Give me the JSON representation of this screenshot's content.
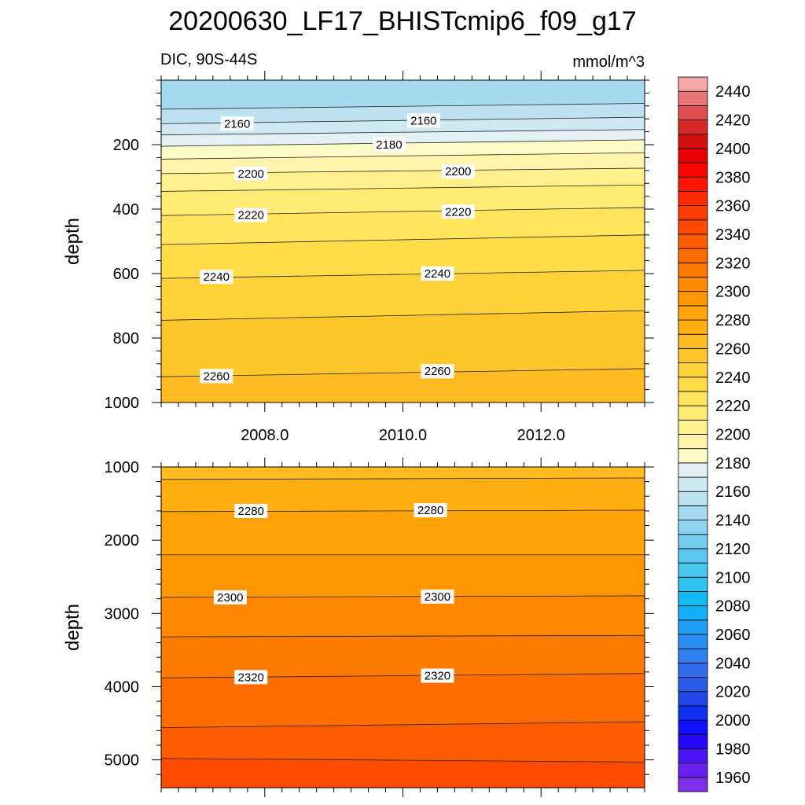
{
  "figure": {
    "title": "20200630_LF17_BHISTcmip6_f09_g17",
    "variable_label": "DIC, 90S-44S",
    "units_label": "mmol/m^3"
  },
  "chart_data": [
    {
      "type": "contour",
      "panel": "upper",
      "ylabel": "depth",
      "xlim": [
        2006.5,
        2013.5
      ],
      "ylim": [
        1000,
        0
      ],
      "x_ticks": [
        2008,
        2010,
        2012
      ],
      "x_tick_labels": [
        "2008.0",
        "2010.0",
        "2012.0"
      ],
      "y_ticks": [
        200,
        400,
        600,
        800,
        1000
      ],
      "y_tick_labels": [
        "200",
        "400",
        "600",
        "800",
        "1000"
      ],
      "contour_interval": 10,
      "isolines": [
        {
          "level": 2140,
          "depth_start": 0,
          "depth_end": 0
        },
        {
          "level": 2150,
          "depth_start": 90,
          "depth_end": 72
        },
        {
          "level": 2160,
          "depth_start": 135,
          "depth_end": 115
        },
        {
          "level": 2170,
          "depth_start": 170,
          "depth_end": 153
        },
        {
          "level": 2180,
          "depth_start": 205,
          "depth_end": 185
        },
        {
          "level": 2190,
          "depth_start": 245,
          "depth_end": 225
        },
        {
          "level": 2200,
          "depth_start": 290,
          "depth_end": 273
        },
        {
          "level": 2210,
          "depth_start": 345,
          "depth_end": 325
        },
        {
          "level": 2220,
          "depth_start": 420,
          "depth_end": 395
        },
        {
          "level": 2230,
          "depth_start": 510,
          "depth_end": 480
        },
        {
          "level": 2240,
          "depth_start": 615,
          "depth_end": 590
        },
        {
          "level": 2250,
          "depth_start": 745,
          "depth_end": 715
        },
        {
          "level": 2260,
          "depth_start": 920,
          "depth_end": 895
        }
      ],
      "line_labels": [
        {
          "text": "2160",
          "x": 2007.6,
          "depth": 135
        },
        {
          "text": "2160",
          "x": 2010.3,
          "depth": 125
        },
        {
          "text": "2180",
          "x": 2009.8,
          "depth": 200
        },
        {
          "text": "2200",
          "x": 2007.8,
          "depth": 290
        },
        {
          "text": "2200",
          "x": 2010.8,
          "depth": 283
        },
        {
          "text": "2220",
          "x": 2007.8,
          "depth": 418
        },
        {
          "text": "2220",
          "x": 2010.8,
          "depth": 408
        },
        {
          "text": "2240",
          "x": 2007.3,
          "depth": 610
        },
        {
          "text": "2240",
          "x": 2010.5,
          "depth": 600
        },
        {
          "text": "2260",
          "x": 2007.3,
          "depth": 918
        },
        {
          "text": "2260",
          "x": 2010.5,
          "depth": 903
        }
      ]
    },
    {
      "type": "contour",
      "panel": "lower",
      "ylabel": "depth",
      "xlim": [
        2006.5,
        2013.5
      ],
      "ylim": [
        5380,
        1000
      ],
      "x_ticks": [
        2008,
        2010,
        2012
      ],
      "y_ticks": [
        1000,
        2000,
        3000,
        4000,
        5000
      ],
      "y_tick_labels": [
        "1000",
        "2000",
        "3000",
        "4000",
        "5000"
      ],
      "contour_interval": 10,
      "isolines": [
        {
          "level": 2270,
          "depth_start": 1170,
          "depth_end": 1150
        },
        {
          "level": 2280,
          "depth_start": 1610,
          "depth_end": 1590
        },
        {
          "level": 2290,
          "depth_start": 2200,
          "depth_end": 2200
        },
        {
          "level": 2300,
          "depth_start": 2780,
          "depth_end": 2760
        },
        {
          "level": 2310,
          "depth_start": 3320,
          "depth_end": 3300
        },
        {
          "level": 2320,
          "depth_start": 3880,
          "depth_end": 3820
        },
        {
          "level": 2330,
          "depth_start": 4560,
          "depth_end": 4480
        },
        {
          "level": 2340,
          "depth_start": 4980,
          "depth_end": 5030
        }
      ],
      "line_labels": [
        {
          "text": "2280",
          "x": 2007.8,
          "depth": 1600
        },
        {
          "text": "2280",
          "x": 2010.4,
          "depth": 1590
        },
        {
          "text": "2300",
          "x": 2007.5,
          "depth": 2780
        },
        {
          "text": "2300",
          "x": 2010.5,
          "depth": 2770
        },
        {
          "text": "2320",
          "x": 2007.8,
          "depth": 3870
        },
        {
          "text": "2320",
          "x": 2010.5,
          "depth": 3850
        }
      ]
    }
  ],
  "colorbar": {
    "tick_labels": [
      "1960",
      "1980",
      "2000",
      "2020",
      "2040",
      "2060",
      "2080",
      "2100",
      "2120",
      "2140",
      "2160",
      "2180",
      "2200",
      "2220",
      "2240",
      "2260",
      "2280",
      "2300",
      "2320",
      "2340",
      "2360",
      "2380",
      "2400",
      "2420",
      "2440"
    ],
    "levels": [
      1950,
      1960,
      1970,
      1980,
      1990,
      2000,
      2010,
      2020,
      2030,
      2040,
      2050,
      2060,
      2070,
      2080,
      2090,
      2100,
      2110,
      2120,
      2130,
      2140,
      2150,
      2160,
      2170,
      2180,
      2190,
      2200,
      2210,
      2220,
      2230,
      2240,
      2250,
      2260,
      2270,
      2280,
      2290,
      2300,
      2310,
      2320,
      2330,
      2340,
      2350,
      2360,
      2370,
      2380,
      2390,
      2400,
      2410,
      2420,
      2430,
      2440,
      2450
    ],
    "colors": [
      "#7f2eea",
      "#6a1ff0",
      "#4a14f5",
      "#2808fb",
      "#1010ff",
      "#1230f0",
      "#2347e6",
      "#2a5ae8",
      "#2f6ded",
      "#2f7ff2",
      "#2a8ff5",
      "#1f9ff8",
      "#10aff8",
      "#12baf4",
      "#30c2f0",
      "#48c6f0",
      "#5bc8f0",
      "#74ccee",
      "#8ed3ef",
      "#a6daf0",
      "#bce2f1",
      "#cfe9f2",
      "#e4f1f4",
      "#fdfac8",
      "#fff5aa",
      "#fff08c",
      "#ffeb74",
      "#ffe45c",
      "#ffdc48",
      "#ffd23a",
      "#ffc62c",
      "#ffbb22",
      "#ffae12",
      "#ffa308",
      "#ff9602",
      "#ff8800",
      "#ff7a00",
      "#ff6c00",
      "#ff5c00",
      "#ff4b00",
      "#ff3c00",
      "#ff2a00",
      "#ff1600",
      "#f50600",
      "#e60000",
      "#d51010",
      "#d82828",
      "#e05050",
      "#e87878",
      "#f5a8a8"
    ]
  }
}
